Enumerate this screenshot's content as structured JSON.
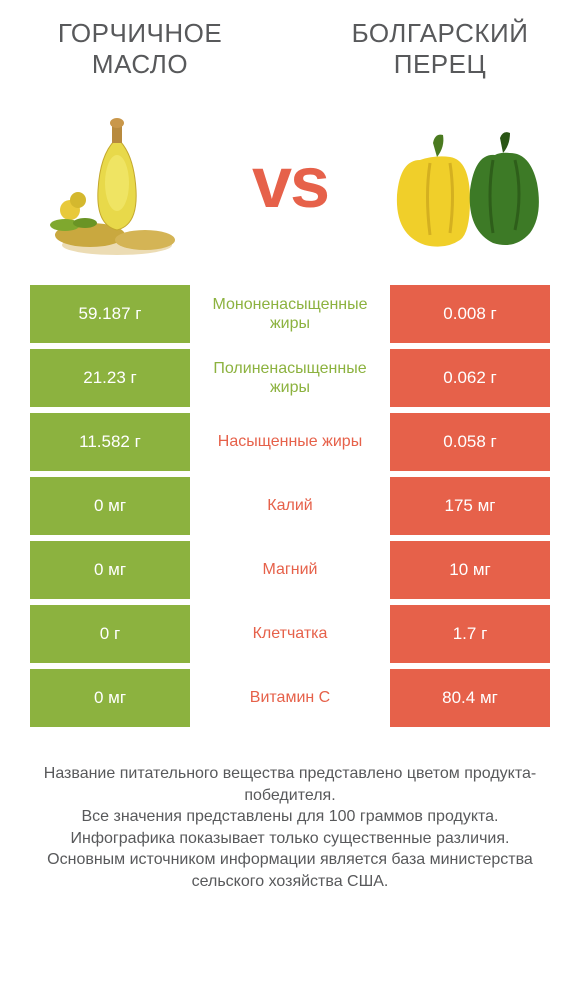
{
  "colors": {
    "left": "#8cb23f",
    "right": "#e6614a",
    "text": "#58595b"
  },
  "header": {
    "left_title": "ГОРЧИЧНОЕ МАСЛО",
    "right_title": "БОЛГАРСКИЙ ПЕРЕЦ",
    "vs": "vs"
  },
  "rows": [
    {
      "left": "59.187 г",
      "label": "Мононенасыщенные жиры",
      "right": "0.008 г",
      "winner": "left"
    },
    {
      "left": "21.23 г",
      "label": "Полиненасыщенные жиры",
      "right": "0.062 г",
      "winner": "left"
    },
    {
      "left": "11.582 г",
      "label": "Насыщенные жиры",
      "right": "0.058 г",
      "winner": "right"
    },
    {
      "left": "0 мг",
      "label": "Калий",
      "right": "175 мг",
      "winner": "right"
    },
    {
      "left": "0 мг",
      "label": "Магний",
      "right": "10 мг",
      "winner": "right"
    },
    {
      "left": "0 г",
      "label": "Клетчатка",
      "right": "1.7 г",
      "winner": "right"
    },
    {
      "left": "0 мг",
      "label": "Витамин C",
      "right": "80.4 мг",
      "winner": "right"
    }
  ],
  "footer": {
    "line1": "Название питательного вещества представлено цветом продукта-победителя.",
    "line2": "Все значения представлены для 100 граммов продукта.",
    "line3": "Инфографика показывает только существенные различия.",
    "line4": "Основным источником информации является база министерства сельского хозяйства США."
  }
}
